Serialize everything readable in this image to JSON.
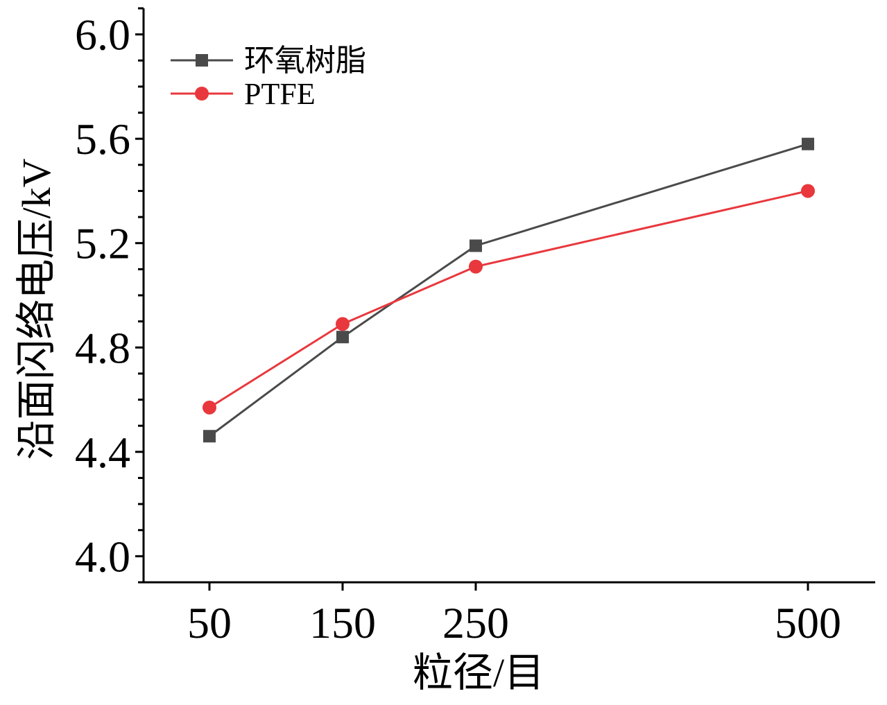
{
  "chart_data": {
    "type": "line",
    "xlabel": "粒径/目",
    "ylabel": "沿面闪络电压/kV",
    "categories": [
      "50",
      "150",
      "250",
      "500"
    ],
    "x": [
      50,
      150,
      250,
      500
    ],
    "ylim": [
      3.9,
      6.1
    ],
    "yticks": [
      "4.0",
      "4.4",
      "4.8",
      "5.2",
      "5.6",
      "6.0"
    ],
    "legend_position": "top-left",
    "grid": false,
    "series": [
      {
        "name": "环氧树脂",
        "marker": "square",
        "color": "#4a4a4a",
        "values": [
          4.46,
          4.84,
          5.19,
          5.58
        ]
      },
      {
        "name": "PTFE",
        "marker": "circle",
        "color": "#e8383d",
        "values": [
          4.57,
          4.89,
          5.11,
          5.4
        ]
      }
    ]
  }
}
